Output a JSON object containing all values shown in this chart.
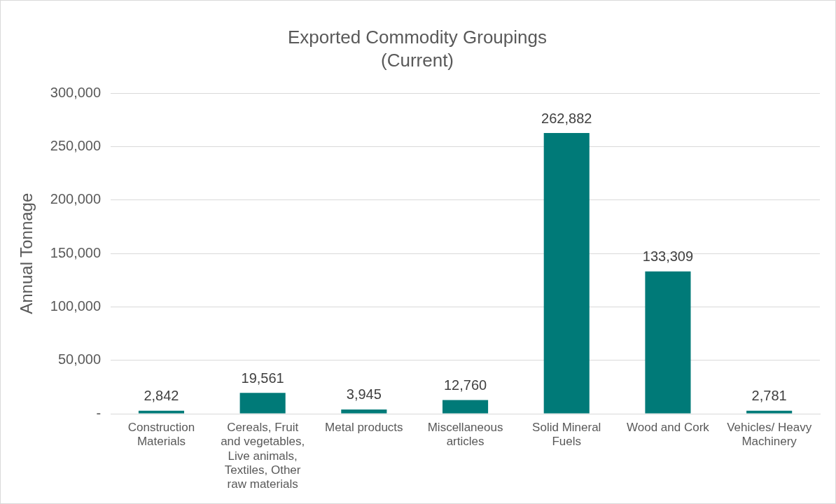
{
  "chart_data": {
    "type": "bar",
    "title": "Exported Commodity Groupings",
    "subtitle": "(Current)",
    "ylabel": "Annual Tonnage",
    "categories": [
      "Construction Materials",
      "Cereals, Fruit and vegetables, Live animals, Textiles, Other raw materials",
      "Metal products",
      "Miscellaneous articles",
      "Solid Mineral Fuels",
      "Wood and Cork",
      "Vehicles/ Heavy Machinery"
    ],
    "values": [
      2842,
      19561,
      3945,
      12760,
      262882,
      133309,
      2781
    ],
    "value_labels": [
      "2,842",
      "19,561",
      "3,945",
      "12,760",
      "262,882",
      "133,309",
      "2,781"
    ],
    "color": "#007a78",
    "ylim": [
      0,
      300000
    ],
    "yticks": [
      {
        "value": 0,
        "label": "-"
      },
      {
        "value": 50000,
        "label": "50,000"
      },
      {
        "value": 100000,
        "label": "100,000"
      },
      {
        "value": 150000,
        "label": "150,000"
      },
      {
        "value": 200000,
        "label": "200,000"
      },
      {
        "value": 250000,
        "label": "250,000"
      },
      {
        "value": 300000,
        "label": "300,000"
      }
    ],
    "grid": "y",
    "legend": false
  }
}
